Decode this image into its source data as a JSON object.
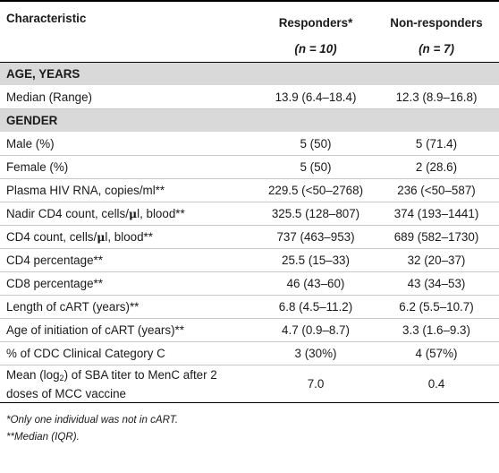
{
  "header": {
    "characteristic": "Characteristic",
    "responders": "Responders*",
    "responders_n": "(n = 10)",
    "nonresponders": "Non-responders",
    "nonresponders_n": "(n = 7)"
  },
  "sections": {
    "age": "AGE, YEARS",
    "gender": "GENDER"
  },
  "rows": [
    {
      "label": "Median (Range)",
      "responders": "13.9 (6.4–18.4)",
      "nonresponders": "12.3 (8.9–16.8)"
    },
    {
      "label": "Male (%)",
      "responders": "5 (50)",
      "nonresponders": "5 (71.4)"
    },
    {
      "label": "Female (%)",
      "responders": "5 (50)",
      "nonresponders": "2 (28.6)"
    },
    {
      "label": "Plasma HIV RNA, copies/ml**",
      "responders": "229.5 (<50–2768)",
      "nonresponders": "236 (<50–587)"
    },
    {
      "label_pre": "Nadir CD4 count, cells/",
      "label_mu": "μ",
      "label_post": "l, blood**",
      "responders": "325.5 (128–807)",
      "nonresponders": "374 (193–1441)"
    },
    {
      "label_pre": "CD4 count, cells/",
      "label_mu": "μ",
      "label_post": "l, blood**",
      "responders": "737 (463–953)",
      "nonresponders": "689 (582–1730)"
    },
    {
      "label": "CD4 percentage**",
      "responders": "25.5 (15–33)",
      "nonresponders": "32 (20–37)"
    },
    {
      "label": "CD8 percentage**",
      "responders": "46 (43–60)",
      "nonresponders": "43 (34–53)"
    },
    {
      "label": "Length of cART (years)**",
      "responders": "6.8 (4.5–11.2)",
      "nonresponders": "6.2 (5.5–10.7)"
    },
    {
      "label": "Age of initiation of cART (years)**",
      "responders": "4.7 (0.9–8.7)",
      "nonresponders": "3.3 (1.6–9.3)"
    },
    {
      "label": "% of CDC Clinical Category C",
      "responders": "3 (30%)",
      "nonresponders": "4 (57%)"
    },
    {
      "label_pre": "Mean (log",
      "label_sub": "2",
      "label_post": ") of SBA titer to MenC after 2",
      "label_line2": "doses of MCC vaccine",
      "responders": "7.0",
      "nonresponders": "0.4"
    }
  ],
  "footnotes": {
    "note1": "*Only one individual was not in cART.",
    "note2": "**Median (IQR)."
  }
}
